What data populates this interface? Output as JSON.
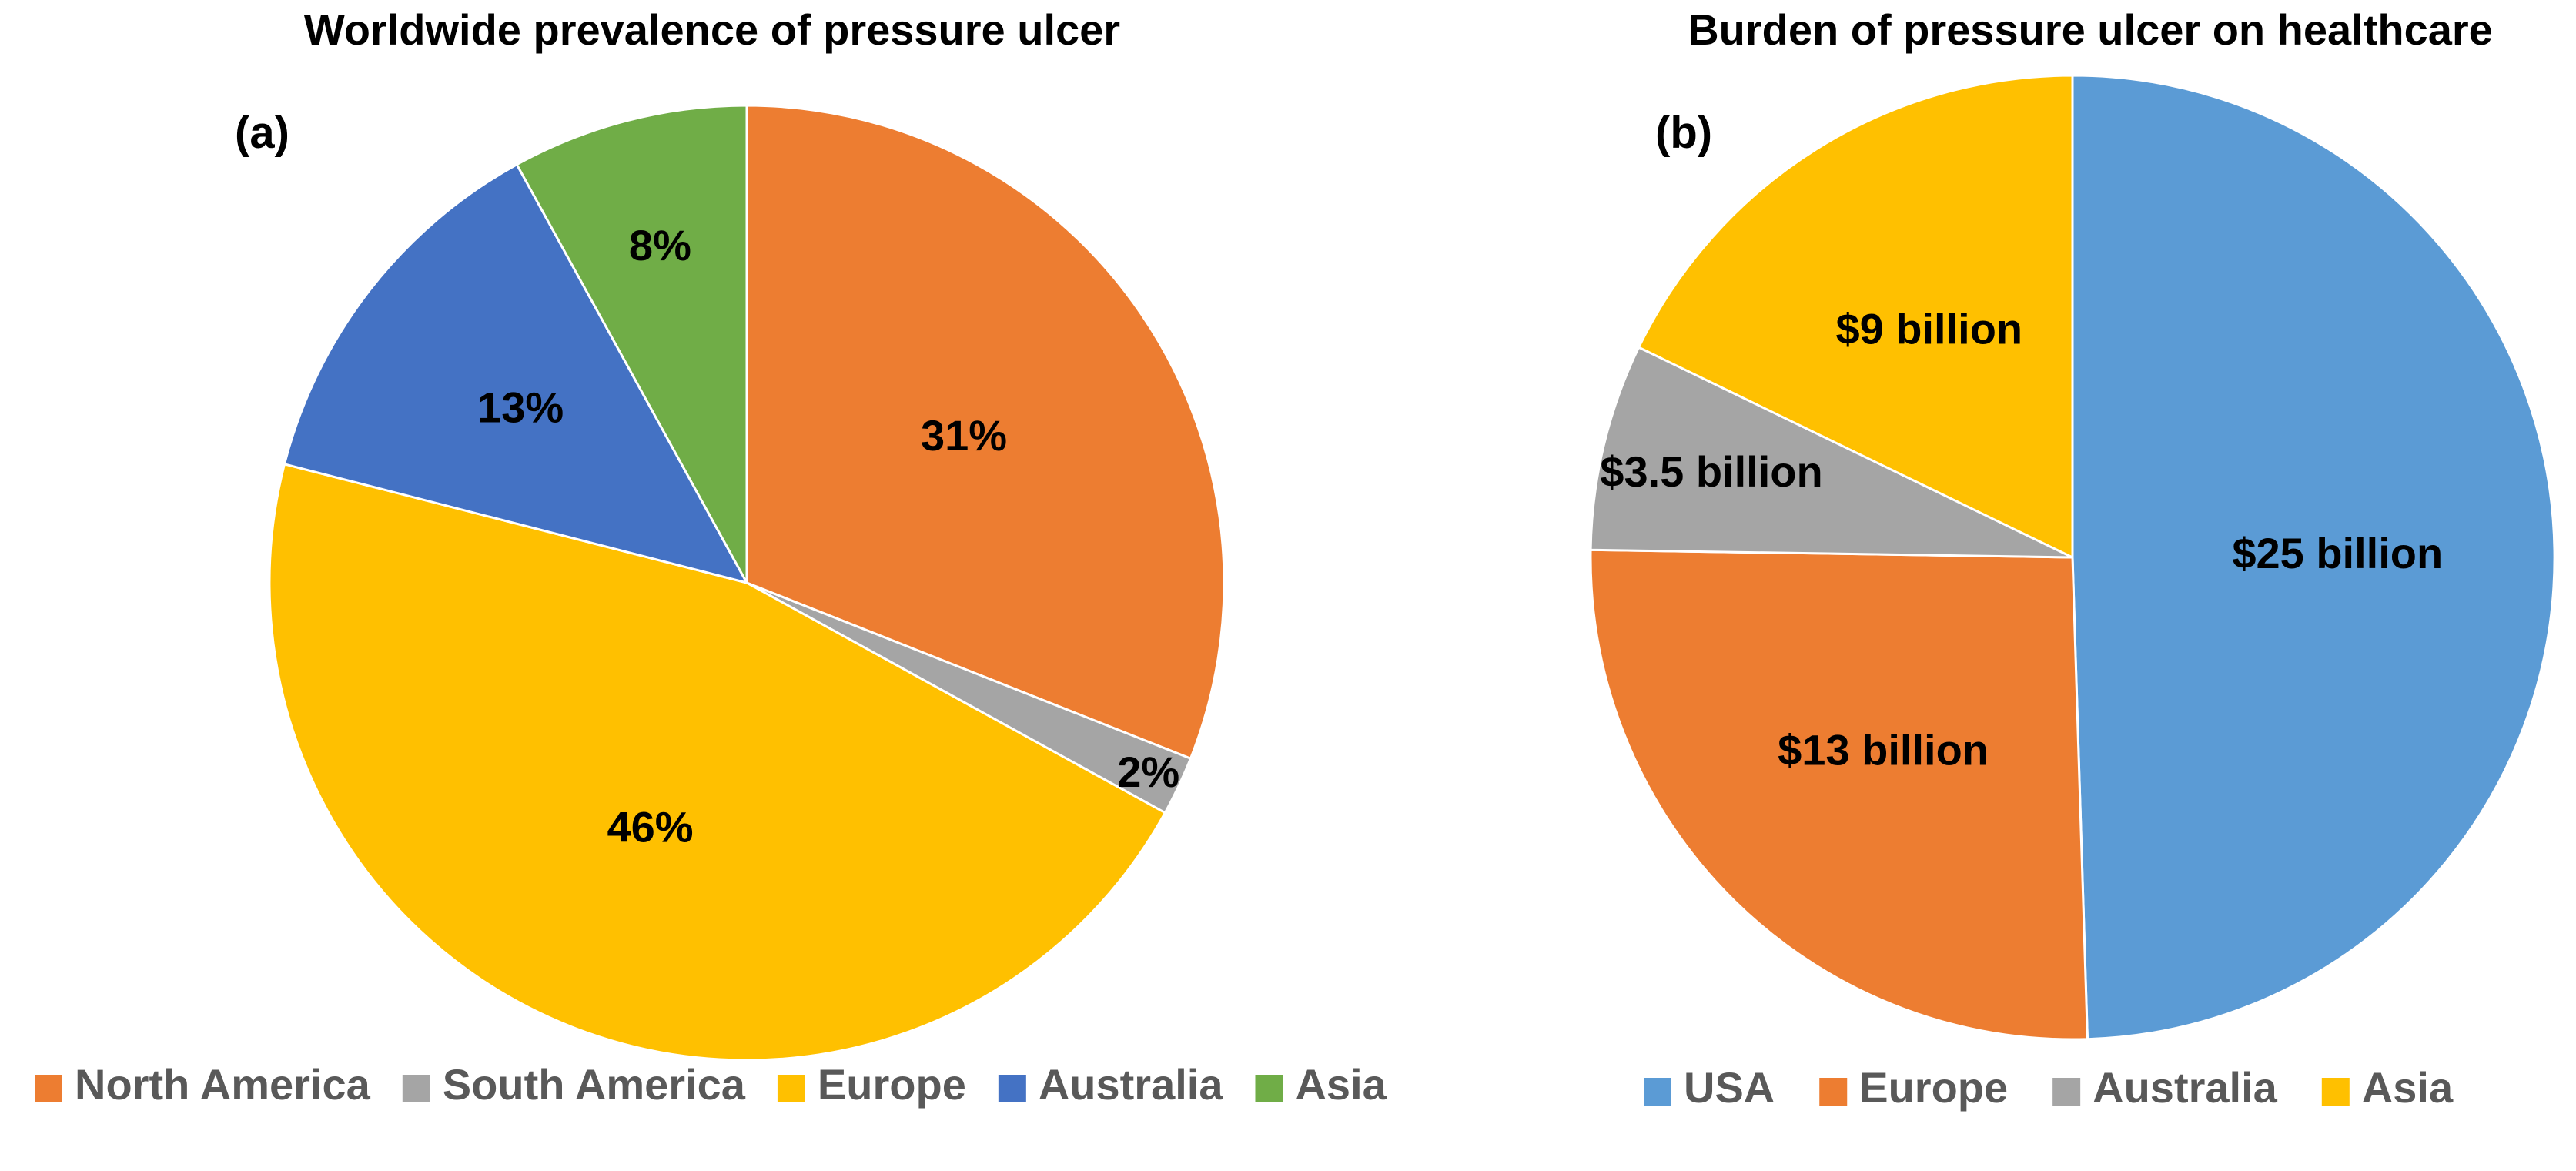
{
  "chart_data": [
    {
      "type": "pie",
      "panel_label": "(a)",
      "title": "Worldwide prevalence of pressure ulcer",
      "slices": [
        {
          "name": "North America",
          "value": 31,
          "label": "31%",
          "color": "#ED7D31"
        },
        {
          "name": "South America",
          "value": 2,
          "label": "2%",
          "color": "#A5A5A5"
        },
        {
          "name": "Europe",
          "value": 46,
          "label": "46%",
          "color": "#FFC000"
        },
        {
          "name": "Australia",
          "value": 13,
          "label": "13%",
          "color": "#4472C4"
        },
        {
          "name": "Asia",
          "value": 8,
          "label": "8%",
          "color": "#70AD47"
        }
      ],
      "legend": [
        "North America",
        "South America",
        "Europe",
        "Australia",
        "Asia"
      ],
      "legend_position": "bottom"
    },
    {
      "type": "pie",
      "panel_label": "(b)",
      "title": "Burden of pressure ulcer on healthcare",
      "unit": "billion USD",
      "slices": [
        {
          "name": "USA",
          "value": 25,
          "label": "$25 billion",
          "color": "#5B9BD5"
        },
        {
          "name": "Europe",
          "value": 13,
          "label": "$13 billion",
          "color": "#ED7D31"
        },
        {
          "name": "Australia",
          "value": 3.5,
          "label": "$3.5 billion",
          "color": "#A5A5A5"
        },
        {
          "name": "Asia",
          "value": 9,
          "label": "$9 billion",
          "color": "#FFC000"
        }
      ],
      "legend": [
        "USA",
        "Europe",
        "Australia",
        "Asia"
      ],
      "legend_position": "bottom"
    }
  ]
}
